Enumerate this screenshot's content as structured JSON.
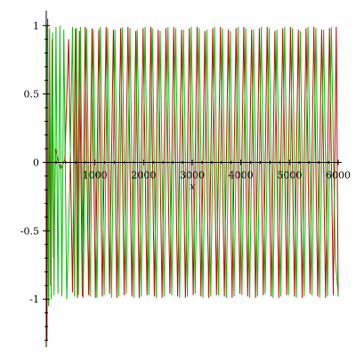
{
  "chart_data": {
    "type": "line",
    "xlabel": "x",
    "ylabel": "",
    "title": "",
    "xlim": [
      0,
      6000
    ],
    "ylim": [
      -1.35,
      1.07
    ],
    "grid": false,
    "x_ticks": [
      1000,
      2000,
      3000,
      4000,
      5000,
      6000
    ],
    "x_tick_labels": [
      "1000",
      "2000",
      "3000",
      "4000",
      "5000",
      "6000"
    ],
    "y_ticks": [
      -1,
      -0.5,
      0,
      0.5,
      1
    ],
    "y_tick_labels": [
      "-1",
      "-0.5",
      "0",
      "0.5",
      "1"
    ],
    "series": [
      {
        "color": "#cc0000",
        "x": [
          0,
          15,
          30,
          50,
          70,
          90,
          120,
          150,
          190,
          240,
          300,
          380,
          460,
          540,
          600,
          640,
          680,
          740,
          800,
          870,
          940,
          1010,
          1080,
          1150,
          1230,
          1300,
          1380,
          1450,
          1530,
          1600,
          1680,
          1760,
          1840,
          1910,
          1990,
          2070,
          2150,
          2220,
          2300,
          2380,
          2460,
          2540,
          2620,
          2700,
          2780,
          2860,
          2940,
          3020,
          3100,
          3180,
          3260,
          3340,
          3420,
          3500,
          3580,
          3660,
          3740,
          3820,
          3900,
          3980,
          4060,
          4140,
          4220,
          4300,
          4380,
          4460,
          4540,
          4620,
          4700,
          4780,
          4860,
          4940,
          5020,
          5100,
          5180,
          5260,
          5340,
          5420,
          5500,
          5580,
          5660,
          5740,
          5820,
          5900,
          5960,
          6000
        ],
        "values": [
          -0.1,
          -1.3,
          1.05,
          -0.98,
          0.6,
          -0.9,
          0.9,
          -0.7,
          0.1,
          0.02,
          -0.05,
          0.02,
          0.9,
          -0.95,
          0.98,
          -0.99,
          0.96,
          -0.98,
          0.99,
          -0.97,
          0.98,
          -0.99,
          0.97,
          -0.98,
          0.99,
          -0.96,
          0.97,
          -0.99,
          0.98,
          -0.97,
          0.99,
          -0.98,
          0.96,
          -0.99,
          0.98,
          -0.97,
          0.99,
          -0.98,
          0.97,
          -0.99,
          0.98,
          -0.96,
          0.99,
          -0.98,
          0.97,
          -0.99,
          0.98,
          -0.97,
          0.99,
          -0.98,
          0.96,
          -0.99,
          0.98,
          -0.97,
          0.99,
          -0.98,
          0.97,
          -0.99,
          0.98,
          -0.96,
          0.99,
          -0.98,
          0.97,
          -0.99,
          0.98,
          -0.97,
          0.99,
          -0.98,
          0.96,
          -0.99,
          0.98,
          -0.97,
          0.99,
          -0.98,
          0.97,
          -0.99,
          0.98,
          -0.96,
          0.99,
          -0.98,
          0.97,
          -0.99,
          0.98,
          -0.97,
          0.99,
          -0.98
        ]
      },
      {
        "color": "#00c000",
        "x": [
          0,
          20,
          45,
          70,
          100,
          130,
          160,
          200,
          240,
          280,
          320,
          360,
          420,
          480,
          540,
          580,
          620,
          660,
          700,
          760,
          830,
          900,
          970,
          1040,
          1110,
          1190,
          1260,
          1340,
          1410,
          1490,
          1560,
          1640,
          1720,
          1800,
          1870,
          1950,
          2030,
          2110,
          2180,
          2260,
          2340,
          2420,
          2500,
          2580,
          2660,
          2740,
          2820,
          2900,
          2980,
          3060,
          3140,
          3220,
          3300,
          3380,
          3460,
          3540,
          3620,
          3700,
          3780,
          3860,
          3940,
          4020,
          4100,
          4180,
          4260,
          4340,
          4420,
          4500,
          4580,
          4660,
          4740,
          4820,
          4900,
          4980,
          5060,
          5140,
          5220,
          5300,
          5380,
          5460,
          5540,
          5620,
          5700,
          5780,
          5860,
          5940,
          6000
        ],
        "values": [
          0.0,
          1.0,
          -1.05,
          0.98,
          -1.0,
          0.95,
          -0.97,
          0.99,
          -0.96,
          1.0,
          -0.98,
          0.97,
          -1.0,
          -0.2,
          0.99,
          -0.98,
          0.98,
          -0.97,
          0.99,
          -0.99,
          0.98,
          -0.98,
          0.97,
          -0.99,
          0.99,
          -0.97,
          0.98,
          -0.99,
          0.97,
          -0.98,
          0.99,
          -0.96,
          0.98,
          -0.99,
          0.97,
          -0.98,
          0.99,
          -0.97,
          0.98,
          -0.99,
          0.96,
          -0.98,
          0.99,
          -0.97,
          0.98,
          -0.99,
          0.97,
          -0.98,
          0.99,
          -0.96,
          0.98,
          -0.99,
          0.97,
          -0.98,
          0.99,
          -0.97,
          0.98,
          -0.99,
          0.96,
          -0.98,
          0.99,
          -0.97,
          0.98,
          -0.99,
          0.97,
          -0.98,
          0.99,
          -0.96,
          0.98,
          -0.99,
          0.97,
          -0.98,
          0.99,
          -0.97,
          0.98,
          -0.99,
          0.96,
          -0.98,
          0.99,
          -0.97,
          0.98,
          -0.99,
          0.97,
          -0.98,
          0.99,
          -0.7,
          -0.97
        ]
      }
    ]
  }
}
